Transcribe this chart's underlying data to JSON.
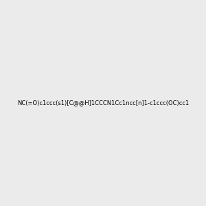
{
  "smiles": "NC(=O)c1ccc(s1)[C@@H]1CCCN1Cc1ncc[n]1-c1ccc(OC)cc1",
  "img_size": [
    300,
    300
  ],
  "background": "#ebebeb",
  "title": "",
  "atom_colors": {
    "N": "#0000ff",
    "S": "#cccc00",
    "O": "#ff0000"
  }
}
